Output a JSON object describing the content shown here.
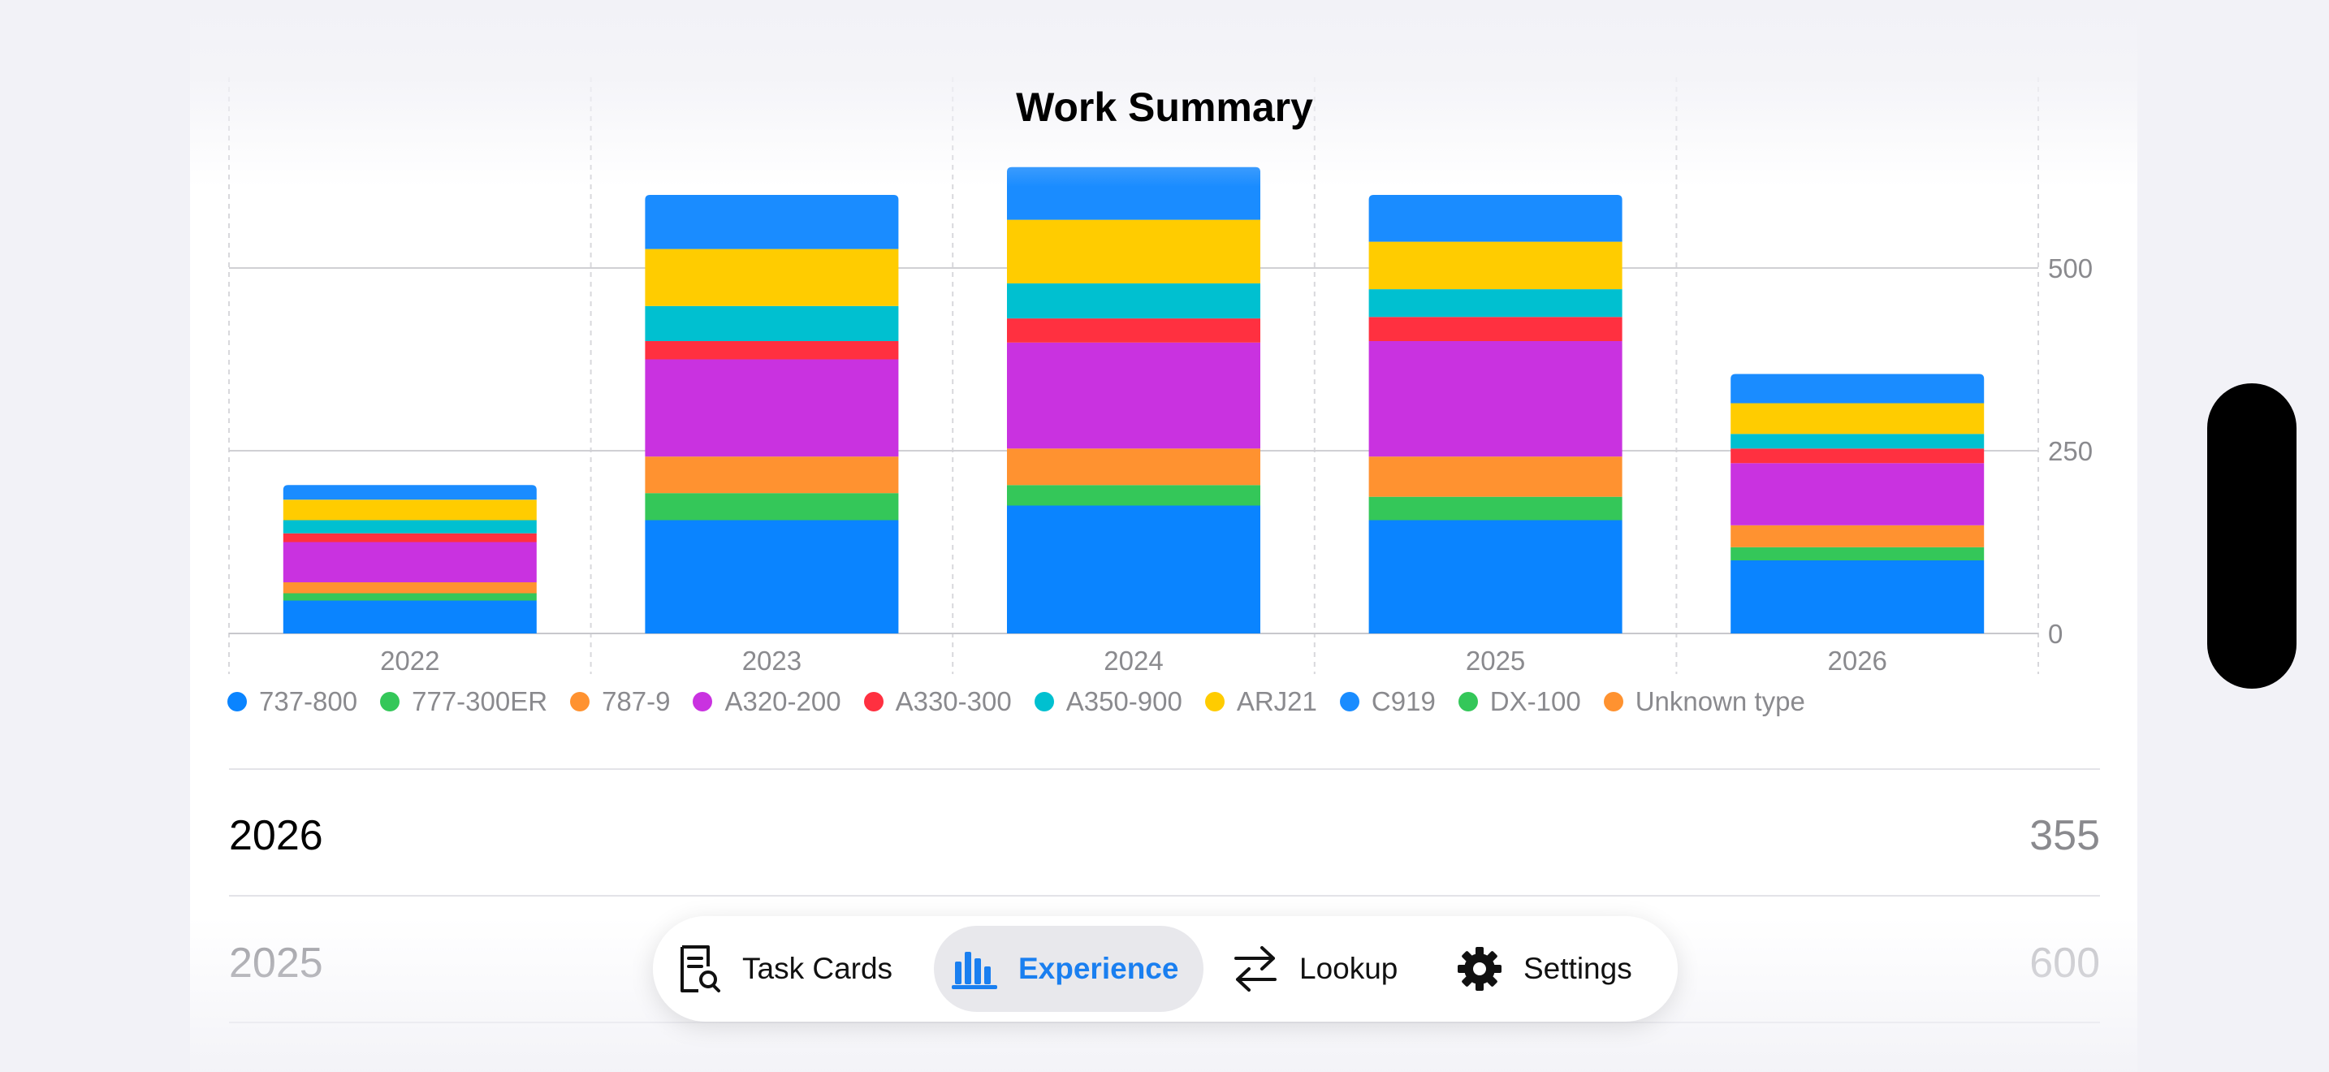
{
  "title": "Work Summary",
  "chart_data": {
    "type": "bar",
    "stacked": true,
    "categories": [
      "2022",
      "2023",
      "2024",
      "2025",
      "2026"
    ],
    "ylim": [
      0,
      750
    ],
    "yticks": [
      0,
      250,
      500
    ],
    "grid": true,
    "legend_position": "bottom",
    "series": [
      {
        "name": "737-800",
        "color": "#0a84ff",
        "values": [
          45,
          155,
          175,
          155,
          100
        ]
      },
      {
        "name": "777-300ER",
        "color": "#34c759",
        "values": [
          10,
          37,
          28,
          32,
          18
        ]
      },
      {
        "name": "787-9",
        "color": "#ff9230",
        "values": [
          15,
          50,
          50,
          55,
          30
        ]
      },
      {
        "name": "A320-200",
        "color": "#c932e0",
        "values": [
          55,
          133,
          145,
          158,
          85
        ]
      },
      {
        "name": "A330-300",
        "color": "#ff3040",
        "values": [
          12,
          25,
          33,
          33,
          20
        ]
      },
      {
        "name": "A350-900",
        "color": "#00c0d0",
        "values": [
          18,
          48,
          48,
          38,
          20
        ]
      },
      {
        "name": "ARJ21",
        "color": "#ffcc00",
        "values": [
          28,
          78,
          87,
          65,
          42
        ]
      },
      {
        "name": "C919",
        "color": "#1a8cff",
        "values": [
          20,
          74,
          72,
          64,
          40
        ]
      },
      {
        "name": "DX-100",
        "color": "#34c759",
        "values": [
          0,
          0,
          0,
          0,
          0
        ]
      },
      {
        "name": "Unknown type",
        "color": "#ff9230",
        "values": [
          0,
          0,
          0,
          0,
          0
        ]
      }
    ]
  },
  "rows": [
    {
      "year": "2026",
      "total": "355"
    },
    {
      "year": "2025",
      "total": "600"
    }
  ],
  "tabbar": {
    "tabs": [
      {
        "label": "Task Cards",
        "icon": "task-cards-icon",
        "active": false
      },
      {
        "label": "Experience",
        "icon": "chart-icon",
        "active": true
      },
      {
        "label": "Lookup",
        "icon": "arrows-swap-icon",
        "active": false
      },
      {
        "label": "Settings",
        "icon": "gear-icon",
        "active": false
      }
    ]
  },
  "colors": {
    "accent": "#1a7ff0"
  }
}
